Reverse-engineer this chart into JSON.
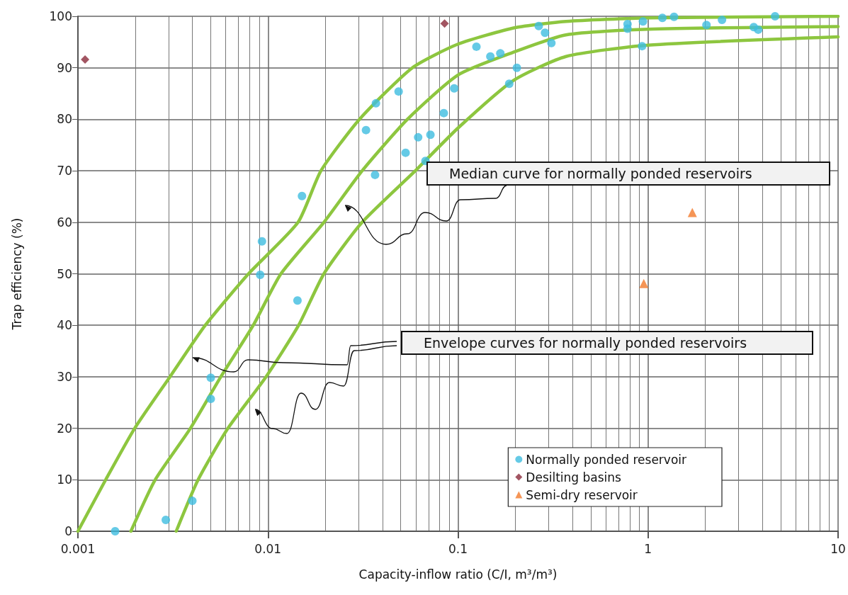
{
  "chart_data": {
    "type": "scatter",
    "xlabel": "Capacity-inflow ratio (C/I, m³/m³)",
    "ylabel": "Trap efficiency (%)",
    "log": "x",
    "grid": true,
    "legend": "bottom right",
    "xlim": [
      0.001,
      10
    ],
    "xticks": [
      0.001,
      0.01,
      0.1,
      1,
      10
    ],
    "ylim": [
      0,
      100
    ],
    "yticks": [
      0,
      10,
      20,
      30,
      40,
      50,
      60,
      70,
      80,
      90,
      100
    ],
    "annotations": [
      "Median curve for normally ponded reservoirs",
      "Envelope curves for normally ponded reservoirs"
    ],
    "series": [
      {
        "name": "Normally ponded reservoir",
        "marker": "circle",
        "color": "#3ebde0",
        "x": [
          0.00157,
          0.0029,
          0.004,
          0.005,
          0.005,
          0.0091,
          0.0093,
          0.0143,
          0.0151,
          0.0328,
          0.0366,
          0.037,
          0.0487,
          0.053,
          0.0617,
          0.0716,
          0.0674,
          0.0842,
          0.0955,
          0.125,
          0.148,
          0.167,
          0.204,
          0.186,
          0.266,
          0.287,
          0.31,
          0.78,
          0.78,
          0.94,
          0.93,
          1.19,
          1.37,
          2.03,
          2.45,
          3.6,
          3.8,
          4.66
        ],
        "values": [
          0,
          2.2,
          5.9,
          29.8,
          25.7,
          49.8,
          56.3,
          44.8,
          65.1,
          77.9,
          69.2,
          83.1,
          85.4,
          73.5,
          76.5,
          77,
          71.9,
          81.2,
          86,
          94.1,
          92.2,
          92.8,
          90,
          86.9,
          98.1,
          96.8,
          94.8,
          98.5,
          97.6,
          99,
          94.2,
          99.7,
          99.9,
          98.3,
          99.3,
          97.9,
          97.4,
          100
        ]
      },
      {
        "name": "Desilting basins",
        "marker": "diamond",
        "color": "#8b2b3b",
        "x": [
          0.00109,
          0.085
        ],
        "values": [
          91.6,
          98.6
        ]
      },
      {
        "name": "Semi-dry reservoir",
        "marker": "triangle",
        "color": "#f27b2c",
        "x": [
          1.71,
          0.95
        ],
        "values": [
          61.9,
          48.1
        ]
      },
      {
        "type": "line",
        "marker": "none",
        "line_style": "solid",
        "color": "#8dc63f",
        "x": [
          0.001,
          0.0014,
          0.00199,
          0.00305,
          0.00468,
          0.0079,
          0.0144,
          0.019,
          0.0303,
          0.0575,
          0.1,
          0.2,
          0.37,
          1,
          10
        ],
        "values": [
          0,
          10,
          20,
          30,
          40,
          50,
          60,
          70,
          80,
          90,
          94.6,
          97.8,
          99,
          99.7,
          100
        ]
      },
      {
        "type": "line",
        "marker": "none",
        "line_style": "solid",
        "color": "#8dc63f",
        "x": [
          0.0019,
          0.00255,
          0.00391,
          0.00565,
          0.00837,
          0.0117,
          0.0197,
          0.0313,
          0.0542,
          0.1,
          0.195,
          0.37,
          1,
          10
        ],
        "values": [
          0,
          10,
          20,
          30,
          40,
          50,
          60,
          70,
          80,
          88.6,
          93,
          96.4,
          97.5,
          98
        ]
      },
      {
        "type": "line",
        "marker": "none",
        "line_style": "solid",
        "color": "#8dc63f",
        "x": [
          0.00329,
          0.00429,
          0.00616,
          0.00977,
          0.0145,
          0.0197,
          0.0313,
          0.0596,
          0.1,
          0.195,
          0.37,
          1,
          10
        ],
        "values": [
          0,
          10,
          20,
          30,
          40,
          50,
          60,
          70,
          78.3,
          87.5,
          92.2,
          94.4,
          96
        ]
      }
    ]
  }
}
